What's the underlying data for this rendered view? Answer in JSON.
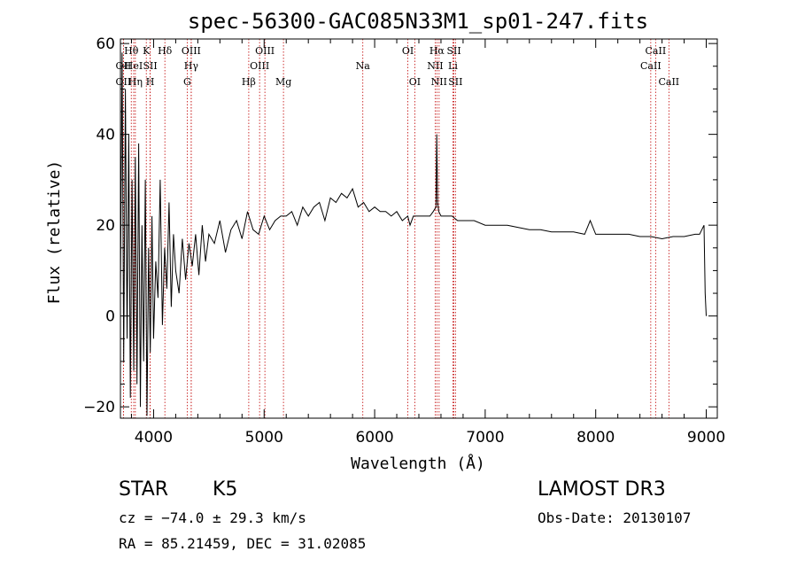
{
  "chart_data": {
    "type": "line",
    "title": "spec-56300-GAC085N33M1_sp01-247.fits",
    "xlabel": "Wavelength (Å)",
    "ylabel": "Flux (relative)",
    "xlim": [
      3700,
      9100
    ],
    "ylim": [
      -22.5,
      61
    ],
    "x_ticks": [
      4000,
      5000,
      6000,
      7000,
      8000,
      9000
    ],
    "x_tick_labels": [
      "4000",
      "5000",
      "6000",
      "7000",
      "8000",
      "9000"
    ],
    "y_ticks": [
      -20,
      0,
      20,
      40,
      60
    ],
    "y_tick_labels": [
      "−20",
      "0",
      "20",
      "40",
      "60"
    ],
    "line_color": "#000000",
    "marker_color": "#c00000",
    "series": [
      {
        "name": "flux",
        "x": [
          3700,
          3715,
          3730,
          3745,
          3760,
          3775,
          3790,
          3805,
          3820,
          3835,
          3850,
          3865,
          3880,
          3895,
          3910,
          3925,
          3940,
          3955,
          3970,
          3985,
          4000,
          4020,
          4040,
          4060,
          4080,
          4100,
          4120,
          4140,
          4160,
          4180,
          4200,
          4230,
          4260,
          4290,
          4320,
          4350,
          4380,
          4410,
          4440,
          4470,
          4500,
          4550,
          4600,
          4650,
          4700,
          4750,
          4800,
          4850,
          4900,
          4950,
          5000,
          5050,
          5100,
          5150,
          5200,
          5250,
          5300,
          5350,
          5400,
          5450,
          5500,
          5550,
          5600,
          5650,
          5700,
          5750,
          5800,
          5850,
          5900,
          5950,
          6000,
          6050,
          6100,
          6150,
          6200,
          6250,
          6300,
          6320,
          6350,
          6400,
          6450,
          6500,
          6530,
          6555,
          6562,
          6570,
          6580,
          6600,
          6650,
          6700,
          6750,
          6800,
          6900,
          7000,
          7100,
          7200,
          7300,
          7400,
          7500,
          7600,
          7700,
          7800,
          7900,
          7950,
          8000,
          8100,
          8200,
          8300,
          8400,
          8500,
          8600,
          8700,
          8800,
          8900,
          8940,
          8960,
          8980,
          8990,
          9000
        ],
        "y": [
          5,
          58,
          -10,
          50,
          -5,
          40,
          -18,
          30,
          -12,
          35,
          -15,
          38,
          -20,
          20,
          -10,
          30,
          -22,
          15,
          -8,
          22,
          -5,
          12,
          4,
          30,
          -2,
          15,
          6,
          25,
          2,
          18,
          10,
          5,
          17,
          8,
          16,
          11,
          18,
          9,
          20,
          12,
          18,
          16,
          21,
          14,
          19,
          21,
          17,
          23,
          19,
          18,
          22,
          19,
          21,
          22,
          22,
          23,
          20,
          24,
          22,
          24,
          25,
          21,
          26,
          25,
          27,
          26,
          28,
          24,
          25,
          23,
          24,
          23,
          23,
          22,
          23,
          21,
          22,
          20,
          22,
          22,
          22,
          22,
          23,
          24,
          40,
          25,
          23,
          22,
          22,
          22,
          21,
          21,
          21,
          20,
          20,
          20,
          19.5,
          19,
          19,
          18.5,
          18.5,
          18.5,
          18,
          21,
          18,
          18,
          18,
          18,
          17.5,
          17.5,
          17,
          17.5,
          17.5,
          18,
          18,
          19,
          20,
          5,
          0
        ]
      }
    ],
    "line_markers": [
      {
        "name": "OII",
        "wavelength": 3727,
        "row": 2
      },
      {
        "name": "OII",
        "wavelength": 3727,
        "row": 3
      },
      {
        "name": "Hθ",
        "wavelength": 3798,
        "row": 1
      },
      {
        "name": "HeI",
        "wavelength": 3820,
        "row": 2
      },
      {
        "name": "Hη",
        "wavelength": 3835,
        "row": 3
      },
      {
        "name": "K",
        "wavelength": 3934,
        "row": 1
      },
      {
        "name": "SII",
        "wavelength": 3969,
        "row": 2
      },
      {
        "name": "H",
        "wavelength": 3969,
        "row": 3
      },
      {
        "name": "Hδ",
        "wavelength": 4102,
        "row": 1
      },
      {
        "name": "G",
        "wavelength": 4304,
        "row": 3
      },
      {
        "name": "OIII",
        "wavelength": 4340,
        "row": 1
      },
      {
        "name": "Hγ",
        "wavelength": 4340,
        "row": 2
      },
      {
        "name": "Hβ",
        "wavelength": 4861,
        "row": 3
      },
      {
        "name": "OIII",
        "wavelength": 4959,
        "row": 2
      },
      {
        "name": "OIII",
        "wavelength": 5007,
        "row": 1
      },
      {
        "name": "Mg",
        "wavelength": 5175,
        "row": 3
      },
      {
        "name": "Na",
        "wavelength": 5893,
        "row": 2
      },
      {
        "name": "OI",
        "wavelength": 6300,
        "row": 1
      },
      {
        "name": "OI",
        "wavelength": 6363,
        "row": 3
      },
      {
        "name": "Hα",
        "wavelength": 6563,
        "row": 1
      },
      {
        "name": "NII",
        "wavelength": 6548,
        "row": 2
      },
      {
        "name": "NII",
        "wavelength": 6583,
        "row": 3
      },
      {
        "name": "SII",
        "wavelength": 6717,
        "row": 1
      },
      {
        "name": "SII",
        "wavelength": 6731,
        "row": 3
      },
      {
        "name": "Li",
        "wavelength": 6708,
        "row": 2
      },
      {
        "name": "CaII",
        "wavelength": 8498,
        "row": 2
      },
      {
        "name": "CaII",
        "wavelength": 8542,
        "row": 1
      },
      {
        "name": "CaII",
        "wavelength": 8662,
        "row": 3
      }
    ]
  },
  "info": {
    "class_label": "STAR",
    "subclass_label": "K5",
    "survey": "LAMOST DR3",
    "redshift_line": "cz = −74.0 ± 29.3 km/s",
    "obs_date": "Obs-Date: 20130107",
    "coords": "RA =  85.21459, DEC =  31.02085"
  }
}
